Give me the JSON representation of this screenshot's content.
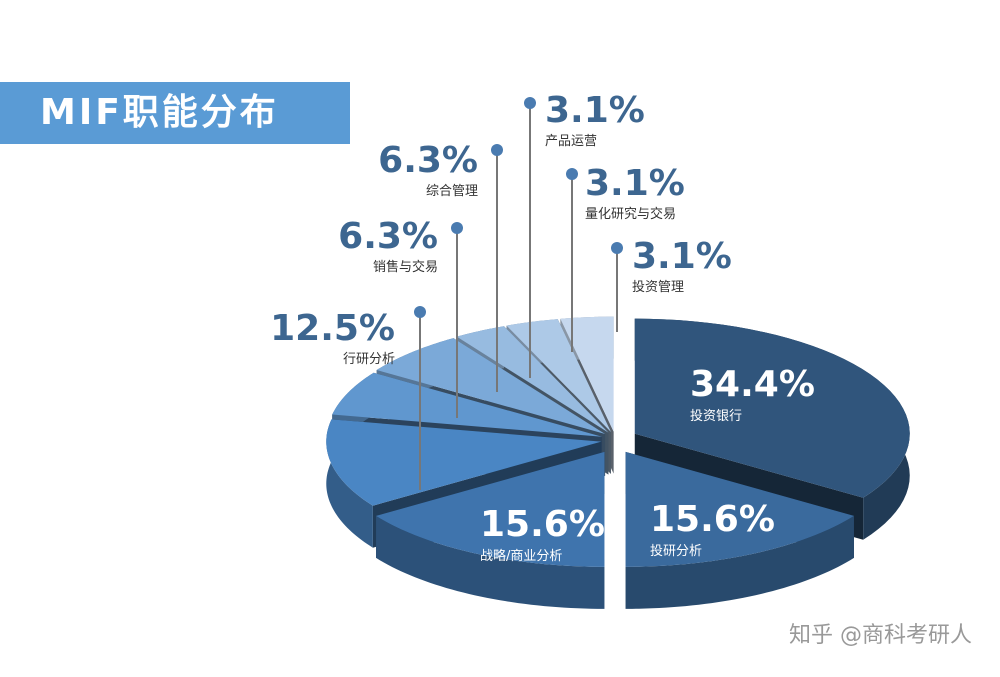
{
  "chart_data": {
    "type": "pie",
    "title": "MIF职能分布",
    "slices": [
      {
        "label": "投资银行",
        "value": 34.4,
        "display": "34.4%",
        "color": "#30557c"
      },
      {
        "label": "投研分析",
        "value": 15.6,
        "display": "15.6%",
        "color": "#3a6a9d"
      },
      {
        "label": "战略/商业分析",
        "value": 15.6,
        "display": "15.6%",
        "color": "#3f74ad"
      },
      {
        "label": "行研分析",
        "value": 12.5,
        "display": "12.5%",
        "color": "#4a86c4"
      },
      {
        "label": "销售与交易",
        "value": 6.3,
        "display": "6.3%",
        "color": "#6097cf"
      },
      {
        "label": "综合管理",
        "value": 6.3,
        "display": "6.3%",
        "color": "#7ba9d8"
      },
      {
        "label": "产品运营",
        "value": 3.1,
        "display": "3.1%",
        "color": "#97bbe0"
      },
      {
        "label": "量化研究与交易",
        "value": 3.1,
        "display": "3.1%",
        "color": "#adc9e7"
      },
      {
        "label": "投资管理",
        "value": 3.1,
        "display": "3.1%",
        "color": "#c6d8ee"
      }
    ],
    "style": "3d-exploded"
  },
  "watermark": "知乎 @商科考研人"
}
